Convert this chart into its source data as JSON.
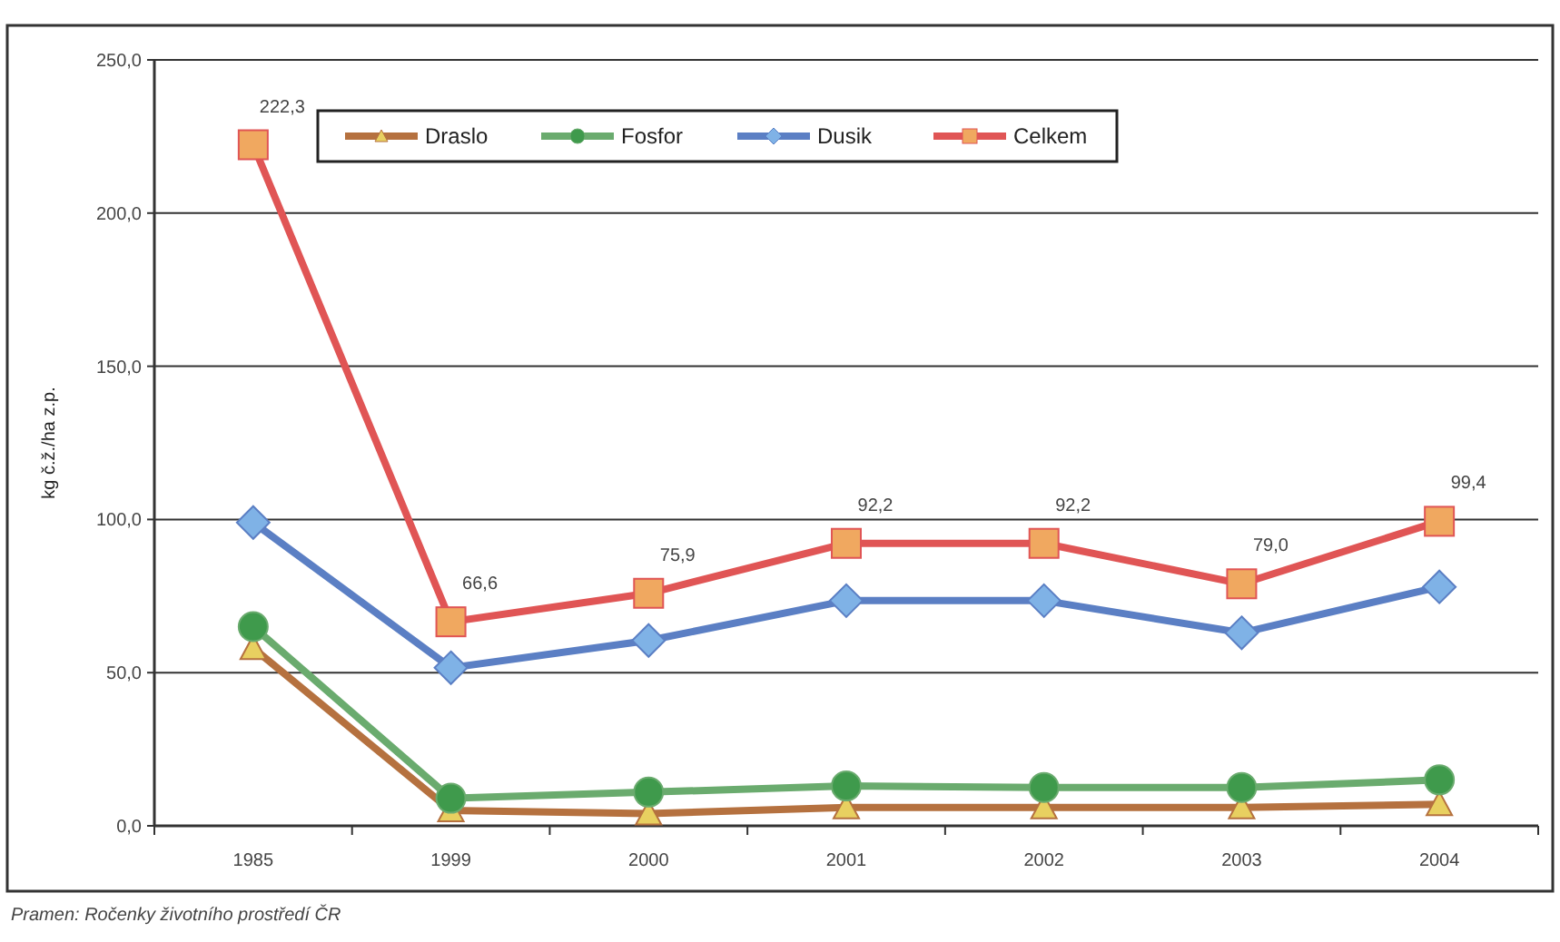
{
  "chart_data": {
    "type": "line",
    "ylabel": "kg č.ž./ha z.p.",
    "categories": [
      "1985",
      "1999",
      "2000",
      "2001",
      "2002",
      "2003",
      "2004"
    ],
    "ylim": [
      0,
      250
    ],
    "yticks": [
      {
        "value": 0,
        "label": "0,0"
      },
      {
        "value": 50,
        "label": "50,0"
      },
      {
        "value": 100,
        "label": "100,0"
      },
      {
        "value": 150,
        "label": "150,0"
      },
      {
        "value": 200,
        "label": "200,0"
      },
      {
        "value": 250,
        "label": "250,0"
      }
    ],
    "grid": "y",
    "legend": "top",
    "annotations": [
      "Pramen: Ročenky životního prostředí ČR"
    ],
    "series": [
      {
        "name": "Draslo",
        "color": "#b5713f",
        "marker": "triangle",
        "values": [
          58,
          5,
          4,
          6,
          6,
          6,
          7
        ]
      },
      {
        "name": "Fosfor",
        "color": "#6aab6e",
        "marker": "circle",
        "values": [
          65,
          9,
          11,
          13,
          12.5,
          12.5,
          15
        ]
      },
      {
        "name": "Dusik",
        "color": "#5b7fc4",
        "marker": "diamond",
        "values": [
          99,
          51.6,
          60.5,
          73.5,
          73.5,
          63,
          78
        ]
      },
      {
        "name": "Celkem",
        "color": "#e05555",
        "marker": "square",
        "values": [
          222.3,
          66.6,
          75.9,
          92.2,
          92.2,
          79.0,
          99.4
        ],
        "value_labels": [
          "222,3",
          "66,6",
          "75,9",
          "92,2",
          "92,2",
          "79,0",
          "99,4"
        ]
      }
    ]
  }
}
